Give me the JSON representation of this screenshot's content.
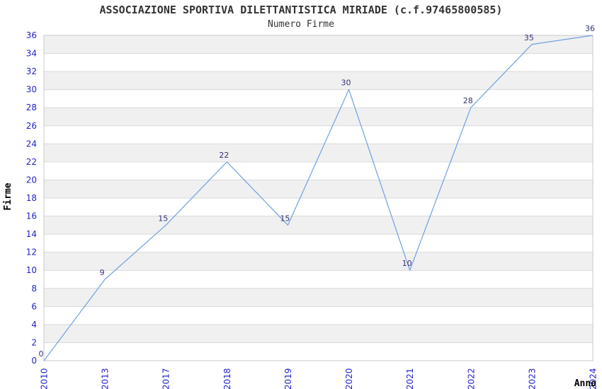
{
  "chart_data": {
    "type": "line",
    "title": "ASSOCIAZIONE SPORTIVA DILETTANTISTICA MIRIADE (c.f.97465800585)",
    "subtitle": "Numero Firme",
    "xlabel": "Anno",
    "ylabel": "Firme",
    "categories": [
      "2010",
      "2013",
      "2017",
      "2018",
      "2019",
      "2020",
      "2021",
      "2022",
      "2023",
      "2024"
    ],
    "values": [
      0,
      9,
      15,
      22,
      15,
      30,
      10,
      28,
      35,
      36
    ],
    "data_labels": [
      "0",
      "9",
      "15",
      "22",
      "15",
      "30",
      "10",
      "28",
      "35",
      "36"
    ],
    "ylim": [
      0,
      36
    ],
    "ytick_step": 2,
    "grid": "horizontal",
    "legend": "none",
    "band_fill": "alternating-2-unit",
    "colors": {
      "line": "#6fa0e0",
      "tick_label": "#2222cc",
      "data_label": "#333377",
      "band_gray": "#f0f0f0",
      "band_white": "#ffffff",
      "gridline": "#d9d9d9",
      "plot_border": "#c9c9c9",
      "title": "#333333",
      "axis_title": "#000000",
      "background": "#ffffff"
    }
  }
}
